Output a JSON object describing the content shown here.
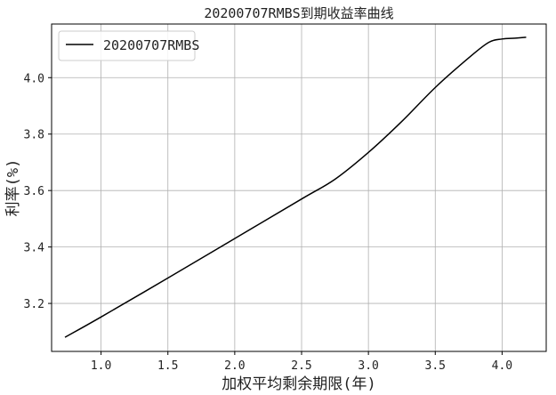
{
  "chart_data": {
    "type": "line",
    "title": "20200707RMBS到期收益率曲线",
    "xlabel": "加权平均剩余期限(年)",
    "ylabel": "利率(%)",
    "xlim": [
      0.63,
      4.33
    ],
    "ylim": [
      3.03,
      4.19
    ],
    "xticks": [
      1.0,
      1.5,
      2.0,
      2.5,
      3.0,
      3.5,
      4.0
    ],
    "xtick_labels": [
      "1.0",
      "1.5",
      "2.0",
      "2.5",
      "3.0",
      "3.5",
      "4.0"
    ],
    "yticks": [
      3.2,
      3.4,
      3.6,
      3.8,
      4.0
    ],
    "ytick_labels": [
      "3.2",
      "3.4",
      "3.6",
      "3.8",
      "4.0"
    ],
    "grid": true,
    "legend": "top-left",
    "series": [
      {
        "name": "20200707RMBS",
        "color": "#000000",
        "x": [
          0.73,
          1.0,
          1.5,
          2.0,
          2.5,
          2.75,
          3.0,
          3.25,
          3.5,
          3.75,
          3.9,
          4.0,
          4.1,
          4.18
        ],
        "y": [
          3.08,
          3.152,
          3.29,
          3.43,
          3.57,
          3.64,
          3.735,
          3.845,
          3.965,
          4.07,
          4.125,
          4.137,
          4.14,
          4.143
        ]
      }
    ]
  }
}
